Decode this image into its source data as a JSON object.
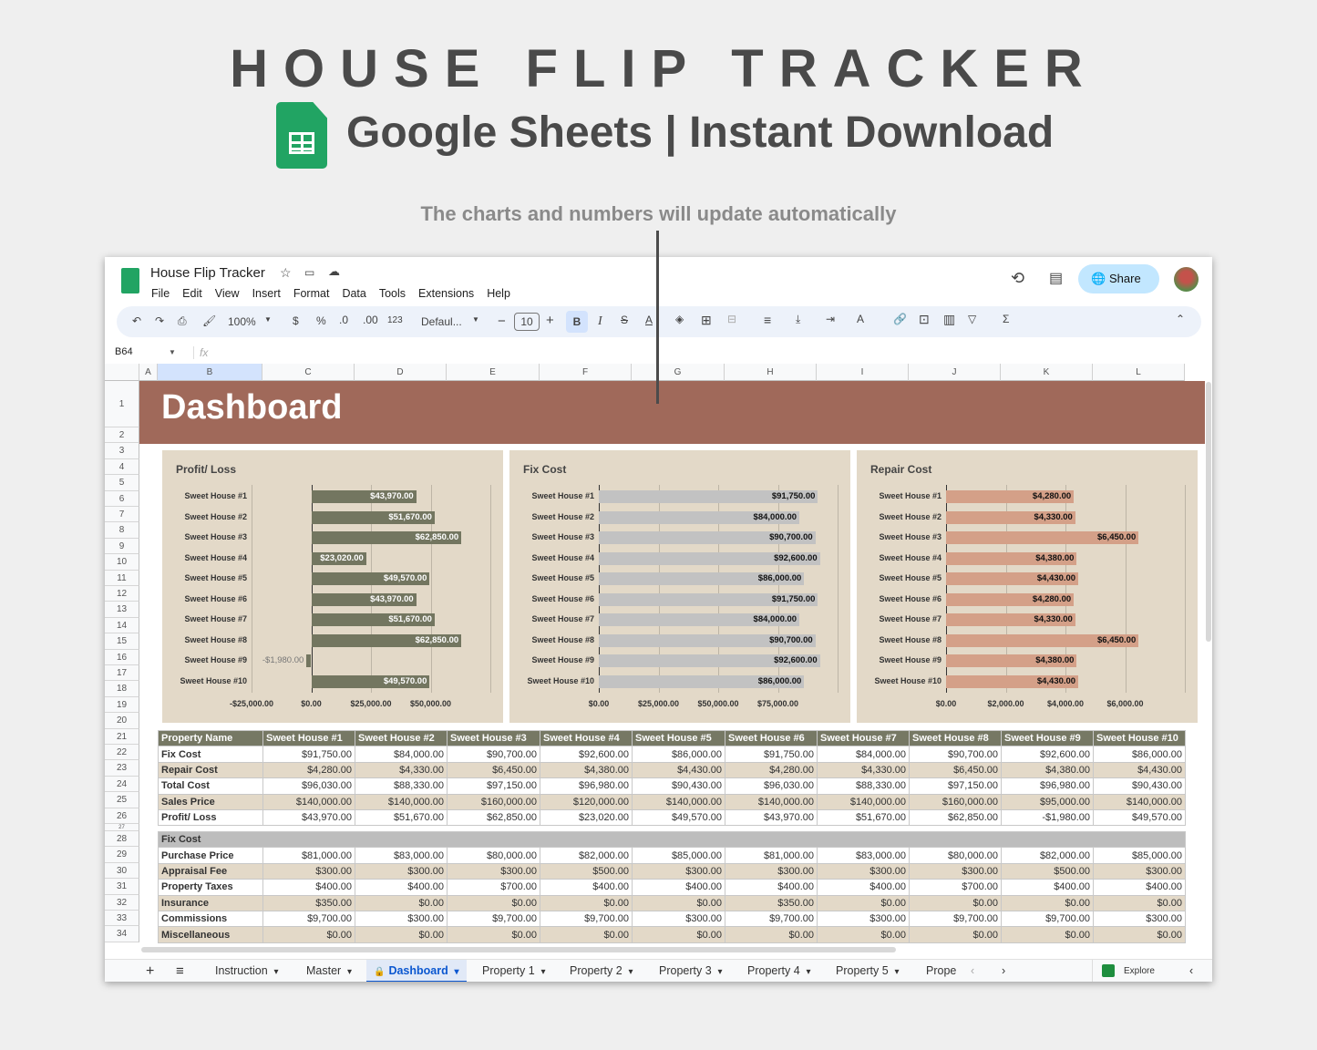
{
  "hero": {
    "title": "HOUSE FLIP TRACKER",
    "subtitle": "Google Sheets | Instant Download",
    "caption": "The charts and numbers will update automatically"
  },
  "app": {
    "doc_title": "House Flip Tracker",
    "menu": [
      "File",
      "Edit",
      "View",
      "Insert",
      "Format",
      "Data",
      "Tools",
      "Extensions",
      "Help"
    ],
    "share_label": "Share",
    "toolbar": {
      "zoom": "100%",
      "currency": "$",
      "percent": "%",
      "dec_less": ".0",
      "dec_more": ".00",
      "number_format": "123",
      "font": "Defaul...",
      "font_size": "10",
      "bold": "B",
      "italic": "I"
    },
    "name_box": "B64",
    "fx": "fx"
  },
  "grid": {
    "columns": [
      "A",
      "B",
      "C",
      "D",
      "E",
      "F",
      "G",
      "H",
      "I",
      "J",
      "K",
      "L"
    ],
    "row_numbers": [
      "1",
      "2",
      "3",
      "4",
      "5",
      "6",
      "7",
      "8",
      "9",
      "10",
      "11",
      "12",
      "13",
      "14",
      "15",
      "16",
      "17",
      "18",
      "19",
      "20",
      "21",
      "22",
      "23",
      "24",
      "25",
      "26",
      "27",
      "28",
      "29",
      "30",
      "31",
      "32",
      "33",
      "34"
    ]
  },
  "dashboard": {
    "title": "Dashboard",
    "banner_color": "#a0695a"
  },
  "chart_data": [
    {
      "type": "bar",
      "orientation": "horizontal",
      "title": "Profit/ Loss",
      "color": "#737660",
      "label_color": "#ffffff",
      "categories": [
        "Sweet House #1",
        "Sweet House #2",
        "Sweet House #3",
        "Sweet House #4",
        "Sweet House #5",
        "Sweet House #6",
        "Sweet House #7",
        "Sweet House #8",
        "Sweet House #9",
        "Sweet House #10"
      ],
      "values": [
        43970,
        51670,
        62850,
        23020,
        49570,
        43970,
        51670,
        62850,
        -1980,
        49570
      ],
      "labels": [
        "$43,970.00",
        "$51,670.00",
        "$62,850.00",
        "$23,020.00",
        "$49,570.00",
        "$43,970.00",
        "$51,670.00",
        "$62,850.00",
        "-$1,980.00",
        "$49,570.00"
      ],
      "xlim": [
        -25000,
        75000
      ],
      "ticks": [
        "-$25,000.00",
        "$0.00",
        "$25,000.00",
        "$50,000.00"
      ],
      "tick_values": [
        -25000,
        0,
        25000,
        50000
      ],
      "grid": true
    },
    {
      "type": "bar",
      "orientation": "horizontal",
      "title": "Fix Cost",
      "color": "#c2c2c2",
      "label_color": "#111111",
      "categories": [
        "Sweet House #1",
        "Sweet House #2",
        "Sweet House #3",
        "Sweet House #4",
        "Sweet House #5",
        "Sweet House #6",
        "Sweet House #7",
        "Sweet House #8",
        "Sweet House #9",
        "Sweet House #10"
      ],
      "values": [
        91750,
        84000,
        90700,
        92600,
        86000,
        91750,
        84000,
        90700,
        92600,
        86000
      ],
      "labels": [
        "$91,750.00",
        "$84,000.00",
        "$90,700.00",
        "$92,600.00",
        "$86,000.00",
        "$91,750.00",
        "$84,000.00",
        "$90,700.00",
        "$92,600.00",
        "$86,000.00"
      ],
      "xlim": [
        0,
        100000
      ],
      "ticks": [
        "$0.00",
        "$25,000.00",
        "$50,000.00",
        "$75,000.00"
      ],
      "tick_values": [
        0,
        25000,
        50000,
        75000
      ],
      "grid": true
    },
    {
      "type": "bar",
      "orientation": "horizontal",
      "title": "Repair Cost",
      "color": "#d4a088",
      "label_color": "#111111",
      "categories": [
        "Sweet House #1",
        "Sweet House #2",
        "Sweet House #3",
        "Sweet House #4",
        "Sweet House #5",
        "Sweet House #6",
        "Sweet House #7",
        "Sweet House #8",
        "Sweet House #9",
        "Sweet House #10"
      ],
      "values": [
        4280,
        4330,
        6450,
        4380,
        4430,
        4280,
        4330,
        6450,
        4380,
        4430
      ],
      "labels": [
        "$4,280.00",
        "$4,330.00",
        "$6,450.00",
        "$4,380.00",
        "$4,430.00",
        "$4,280.00",
        "$4,330.00",
        "$6,450.00",
        "$4,380.00",
        "$4,430.00"
      ],
      "xlim": [
        0,
        8000
      ],
      "ticks": [
        "$0.00",
        "$2,000.00",
        "$4,000.00",
        "$6,000.00"
      ],
      "tick_values": [
        0,
        2000,
        4000,
        6000
      ],
      "grid": true
    }
  ],
  "summary_table": {
    "headers": [
      "Property Name",
      "Sweet House #1",
      "Sweet House #2",
      "Sweet House #3",
      "Sweet House #4",
      "Sweet House #5",
      "Sweet House #6",
      "Sweet House #7",
      "Sweet House #8",
      "Sweet House #9",
      "Sweet House #10"
    ],
    "rows": [
      [
        "Fix Cost",
        "$91,750.00",
        "$84,000.00",
        "$90,700.00",
        "$92,600.00",
        "$86,000.00",
        "$91,750.00",
        "$84,000.00",
        "$90,700.00",
        "$92,600.00",
        "$86,000.00"
      ],
      [
        "Repair Cost",
        "$4,280.00",
        "$4,330.00",
        "$6,450.00",
        "$4,380.00",
        "$4,430.00",
        "$4,280.00",
        "$4,330.00",
        "$6,450.00",
        "$4,380.00",
        "$4,430.00"
      ],
      [
        "Total Cost",
        "$96,030.00",
        "$88,330.00",
        "$97,150.00",
        "$96,980.00",
        "$90,430.00",
        "$96,030.00",
        "$88,330.00",
        "$97,150.00",
        "$96,980.00",
        "$90,430.00"
      ],
      [
        "Sales Price",
        "$140,000.00",
        "$140,000.00",
        "$160,000.00",
        "$120,000.00",
        "$140,000.00",
        "$140,000.00",
        "$140,000.00",
        "$160,000.00",
        "$95,000.00",
        "$140,000.00"
      ],
      [
        "Profit/ Loss",
        "$43,970.00",
        "$51,670.00",
        "$62,850.00",
        "$23,020.00",
        "$49,570.00",
        "$43,970.00",
        "$51,670.00",
        "$62,850.00",
        "-$1,980.00",
        "$49,570.00"
      ]
    ]
  },
  "fix_cost_table": {
    "title": "Fix Cost",
    "rows": [
      [
        "Purchase Price",
        "$81,000.00",
        "$83,000.00",
        "$80,000.00",
        "$82,000.00",
        "$85,000.00",
        "$81,000.00",
        "$83,000.00",
        "$80,000.00",
        "$82,000.00",
        "$85,000.00"
      ],
      [
        "Appraisal Fee",
        "$300.00",
        "$300.00",
        "$300.00",
        "$500.00",
        "$300.00",
        "$300.00",
        "$300.00",
        "$300.00",
        "$500.00",
        "$300.00"
      ],
      [
        "Property Taxes",
        "$400.00",
        "$400.00",
        "$700.00",
        "$400.00",
        "$400.00",
        "$400.00",
        "$400.00",
        "$700.00",
        "$400.00",
        "$400.00"
      ],
      [
        "Insurance",
        "$350.00",
        "$0.00",
        "$0.00",
        "$0.00",
        "$0.00",
        "$350.00",
        "$0.00",
        "$0.00",
        "$0.00",
        "$0.00"
      ],
      [
        "Commissions",
        "$9,700.00",
        "$300.00",
        "$9,700.00",
        "$9,700.00",
        "$300.00",
        "$9,700.00",
        "$300.00",
        "$9,700.00",
        "$9,700.00",
        "$300.00"
      ],
      [
        "Miscellaneous",
        "$0.00",
        "$0.00",
        "$0.00",
        "$0.00",
        "$0.00",
        "$0.00",
        "$0.00",
        "$0.00",
        "$0.00",
        "$0.00"
      ]
    ]
  },
  "sheet_tabs": {
    "tabs": [
      "Instruction",
      "Master",
      "Dashboard",
      "Property 1",
      "Property 2",
      "Property 3",
      "Property 4",
      "Property 5",
      "Prope"
    ],
    "active": "Dashboard",
    "explore_label": "Explore"
  }
}
